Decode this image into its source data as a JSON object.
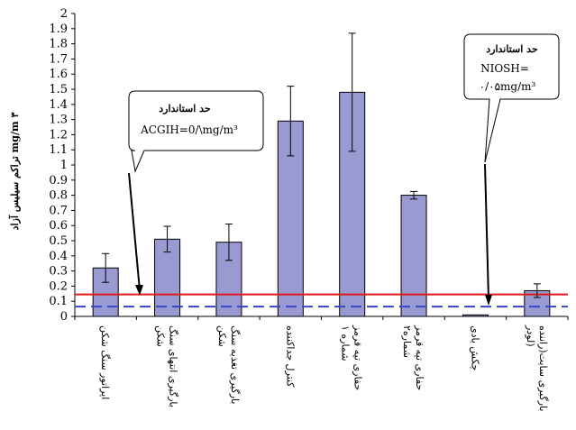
{
  "chart_data": {
    "type": "bar",
    "title": "",
    "ylabel": "تراکم سیلیس آزاد mg/m ۳",
    "ylim": [
      0,
      2
    ],
    "yticks": [
      "0",
      "0.1",
      "0.2",
      "0.3",
      "0.4",
      "0.5",
      "0.6",
      "0.7",
      "0.8",
      "0.9",
      "1",
      "1.1",
      "1.2",
      "1.3",
      "1.4",
      "1.5",
      "1.6",
      "1.7",
      "1.8",
      "1.9",
      "2"
    ],
    "categories": [
      [
        "اپراتور سنگ شکن"
      ],
      [
        "بارگیری انتهای سنگ",
        "شکن"
      ],
      [
        "بارگیری تغذیه سنگ",
        "شکن"
      ],
      [
        "کنترل جداکننده"
      ],
      [
        "حفاری تپه قرمز",
        "شماره ۱"
      ],
      [
        "حفاری تپه قرمز",
        "شماره۲"
      ],
      [
        "چکش بادی"
      ],
      [
        "بارگیری سایت(راننده",
        "لودر)"
      ]
    ],
    "values": [
      0.32,
      0.51,
      0.49,
      1.29,
      1.48,
      0.8,
      0.01,
      0.17
    ],
    "errors": [
      0.095,
      0.085,
      0.12,
      0.23,
      0.39,
      0.025,
      0.0,
      0.045
    ],
    "bar_color": "#9a9ad2",
    "reference_lines": [
      {
        "value": 0.145,
        "style": "solid",
        "color": "#e0181a"
      },
      {
        "value": 0.065,
        "style": "dashed",
        "color": "#3b43c9"
      }
    ],
    "annotations": [
      {
        "title": "حد استاندارد",
        "text": "ACGIH=0/\\mg/m³"
      },
      {
        "title": "حد استاندارد",
        "lines": [
          "NIOSH=",
          "۰/۰۵mg/m³"
        ]
      }
    ],
    "grid": false
  }
}
